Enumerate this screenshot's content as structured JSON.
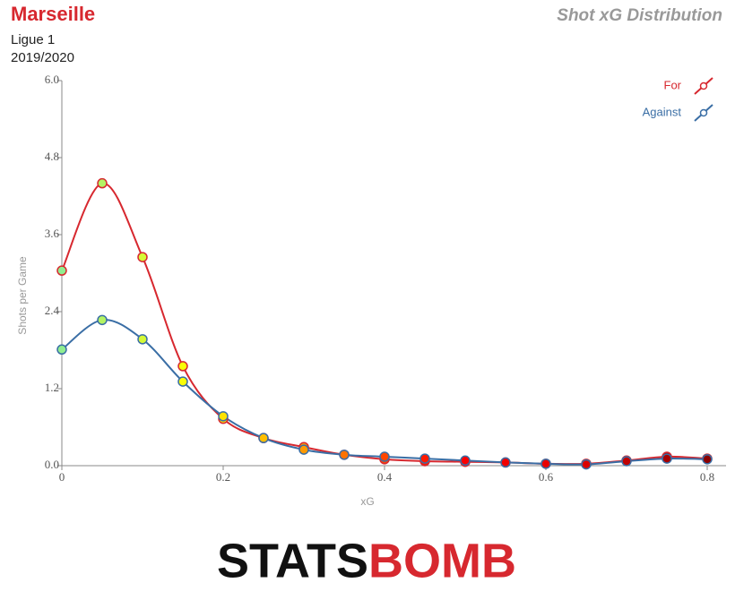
{
  "header": {
    "team": "Marseille",
    "competition": "Ligue 1",
    "season": "2019/2020",
    "title": "Shot xG Distribution"
  },
  "logo": {
    "left": "STATS",
    "right": "BOMB"
  },
  "chart_data": {
    "type": "line",
    "smooth": true,
    "x_label": "xG",
    "y_label": "Shots per Game",
    "x": [
      0,
      0.05,
      0.1,
      0.15,
      0.2,
      0.25,
      0.3,
      0.35,
      0.4,
      0.45,
      0.5,
      0.55,
      0.6,
      0.65,
      0.7,
      0.75,
      0.8
    ],
    "series": [
      {
        "name": "For",
        "color": "#d7282f",
        "values": [
          3.04,
          4.4,
          3.25,
          1.55,
          0.73,
          0.43,
          0.29,
          0.17,
          0.1,
          0.07,
          0.06,
          0.05,
          0.03,
          0.03,
          0.08,
          0.14,
          0.11
        ]
      },
      {
        "name": "Against",
        "color": "#3a6ea5",
        "values": [
          1.81,
          2.27,
          1.97,
          1.31,
          0.77,
          0.43,
          0.25,
          0.17,
          0.14,
          0.11,
          0.08,
          0.05,
          0.03,
          0.02,
          0.07,
          0.11,
          0.1
        ]
      }
    ],
    "marker_gradient": [
      "#90ee90",
      "#ffff00",
      "#ff8c00",
      "#ff0000",
      "#e00000",
      "#8b0000"
    ],
    "xlim": [
      0,
      0.8
    ],
    "xticks": [
      0,
      0.2,
      0.4,
      0.6,
      0.8
    ],
    "ylim": [
      0,
      6
    ],
    "yticks": [
      {
        "value": 0,
        "label": "0.0"
      },
      {
        "value": 1.2,
        "label": "1.2"
      },
      {
        "value": 2.4,
        "label": "2.4"
      },
      {
        "value": 3.6,
        "label": "3.6"
      },
      {
        "value": 4.8,
        "label": "4.8"
      },
      {
        "value": 6,
        "label": "6.0"
      }
    ],
    "legend": "top-right",
    "grid": false
  }
}
